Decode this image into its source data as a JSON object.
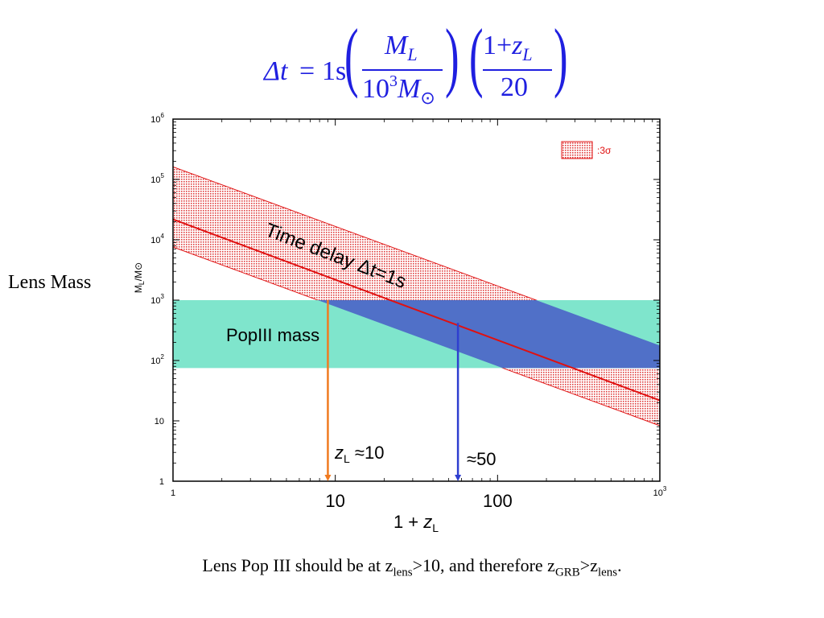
{
  "formula": {
    "lhs": "Δt",
    "eq": "=",
    "coef": "1s",
    "frac1_num": "M",
    "frac1_num_sub": "L",
    "frac1_den_base": "10",
    "frac1_den_exp": "3",
    "frac1_den_M": "M",
    "frac1_den_sub": "⊙",
    "frac2_num_one": "1+",
    "frac2_num_z": "z",
    "frac2_num_sub": "L",
    "frac2_den": "20"
  },
  "side_label": "Lens Mass",
  "caption": {
    "part1": "Lens Pop III should be at z",
    "sub1": "lens",
    "part2": ">10, and therefore z",
    "sub2": "GRB",
    "part3": ">z",
    "sub3": "lens",
    "part4": "."
  },
  "colors": {
    "band_fill": "#e83030",
    "line": "#e01010",
    "popiii": "#7fe5cc",
    "overlap": "#5070c8",
    "arrow_orange": "#f07a20",
    "arrow_blue": "#2f3fd0"
  },
  "chart_data": {
    "type": "area",
    "x_scale": "log",
    "y_scale": "log",
    "xlim": [
      1,
      1000
    ],
    "ylim": [
      1,
      1000000
    ],
    "x_ticks": [
      {
        "v": 1,
        "label": "1",
        "style": "small"
      },
      {
        "v": 10,
        "label": "10",
        "style": "large"
      },
      {
        "v": 100,
        "label": "100",
        "style": "large"
      },
      {
        "v": 1000,
        "label": "10",
        "sup": "3",
        "style": "small"
      }
    ],
    "y_ticks": [
      {
        "v": 1,
        "label": "1",
        "sup": ""
      },
      {
        "v": 10,
        "label": "10",
        "sup": ""
      },
      {
        "v": 100,
        "label": "10",
        "sup": "2"
      },
      {
        "v": 1000,
        "label": "10",
        "sup": "3"
      },
      {
        "v": 10000,
        "label": "10",
        "sup": "4"
      },
      {
        "v": 100000,
        "label": "10",
        "sup": "5"
      },
      {
        "v": 1000000,
        "label": "10",
        "sup": "6"
      }
    ],
    "xlabel_prefix": "1 + ",
    "xlabel_z": "z",
    "xlabel_sub": "L",
    "ylabel": "M",
    "ylabel_sub": "L",
    "ylabel_suffix": "/M⊙",
    "series": [
      {
        "role": "central",
        "x": [
          1,
          1000
        ],
        "y": [
          21800,
          21.8
        ]
      },
      {
        "role": "band_upper",
        "x": [
          1,
          1000
        ],
        "y": [
          162000,
          177
        ]
      },
      {
        "role": "band_lower",
        "x": [
          1,
          1000
        ],
        "y": [
          7600,
          8.3
        ]
      }
    ],
    "horizontal_band": {
      "y_min": 75,
      "y_max": 1000,
      "label": "PopIII mass"
    },
    "legend": {
      "label": ":3σ",
      "position": "top-right"
    },
    "annotations": {
      "time_delay": "Time delay   Δt=1s",
      "z10_z": "z",
      "z10_sub": "L",
      "z10_val": " ≈10",
      "z50": "≈50"
    },
    "arrows": [
      {
        "name": "orange",
        "x": 9,
        "y_from": 1000,
        "y_to": 1
      },
      {
        "name": "blue",
        "x": 57,
        "y_from": 420,
        "y_to": 1
      }
    ]
  }
}
